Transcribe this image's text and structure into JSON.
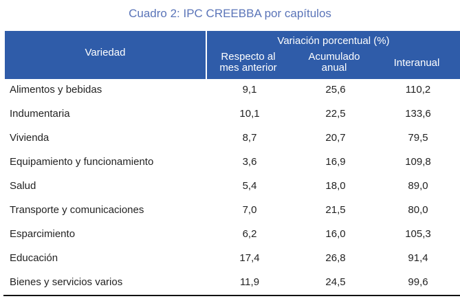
{
  "title": "Cuadro 2: IPC CREEBBA por capítulos",
  "header": {
    "variedad": "Variedad",
    "group": "Variación porcentual (%)",
    "col1_l1": "Respecto al",
    "col1_l2": "mes anterior",
    "col2_l1": "Acumulado",
    "col2_l2": "anual",
    "col3": "Interanual"
  },
  "rows": [
    {
      "label": "Alimentos y bebidas",
      "v1": "9,1",
      "v2": "25,6",
      "v3": "110,2"
    },
    {
      "label": "Indumentaria",
      "v1": "10,1",
      "v2": "22,5",
      "v3": "133,6"
    },
    {
      "label": "Vivienda",
      "v1": "8,7",
      "v2": "20,7",
      "v3": "79,5"
    },
    {
      "label": "Equipamiento y funcionamiento",
      "v1": "3,6",
      "v2": "16,9",
      "v3": "109,8"
    },
    {
      "label": "Salud",
      "v1": "5,4",
      "v2": "18,0",
      "v3": "89,0"
    },
    {
      "label": "Transporte y comunicaciones",
      "v1": "7,0",
      "v2": "21,5",
      "v3": "80,0"
    },
    {
      "label": "Esparcimiento",
      "v1": "6,2",
      "v2": "16,0",
      "v3": "105,3"
    },
    {
      "label": "Educación",
      "v1": "17,4",
      "v2": "26,8",
      "v3": "91,4"
    },
    {
      "label": "Bienes y servicios varios",
      "v1": "11,9",
      "v2": "24,5",
      "v3": "99,6"
    }
  ]
}
